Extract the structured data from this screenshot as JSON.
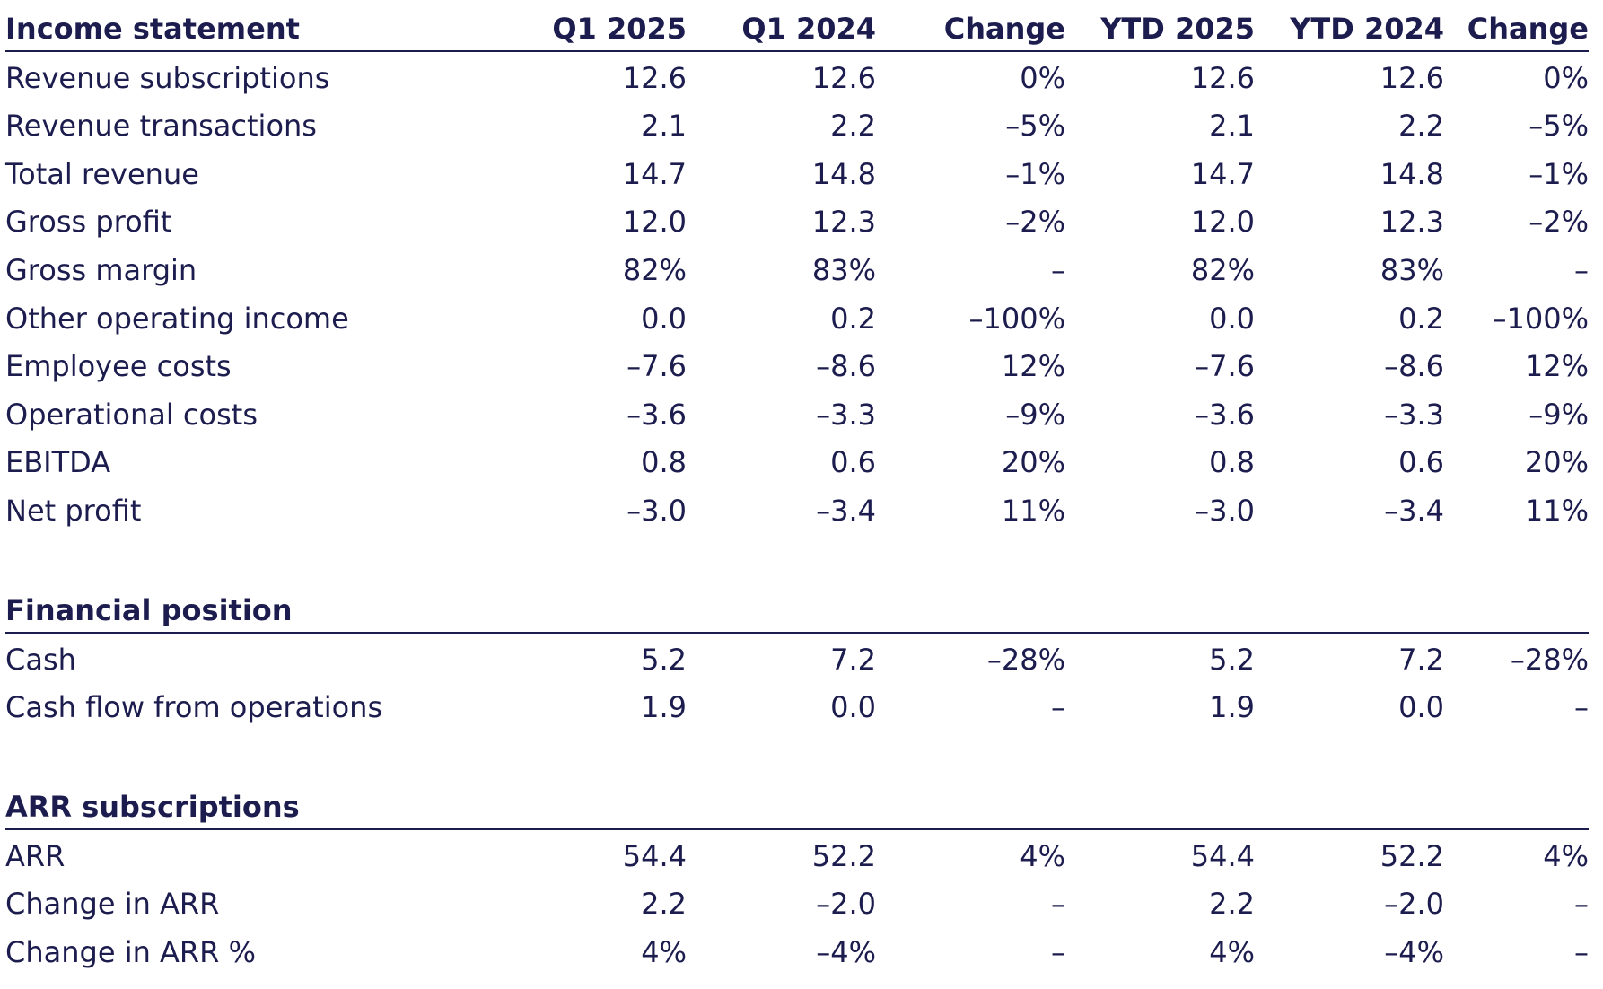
{
  "columns": [
    "Q1 2025",
    "Q1 2024",
    "Change",
    "YTD 2025",
    "YTD 2024",
    "Change"
  ],
  "sections": [
    {
      "title": "Income statement",
      "show_columns": true,
      "rows": [
        {
          "label": "Revenue subscriptions",
          "values": [
            "12.6",
            "12.6",
            "0%",
            "12.6",
            "12.6",
            "0%"
          ]
        },
        {
          "label": "Revenue transactions",
          "values": [
            "2.1",
            "2.2",
            "–5%",
            "2.1",
            "2.2",
            "–5%"
          ]
        },
        {
          "label": "Total revenue",
          "values": [
            "14.7",
            "14.8",
            "–1%",
            "14.7",
            "14.8",
            "–1%"
          ]
        },
        {
          "label": "Gross profit",
          "values": [
            "12.0",
            "12.3",
            "–2%",
            "12.0",
            "12.3",
            "–2%"
          ]
        },
        {
          "label": "Gross margin",
          "values": [
            "82%",
            "83%",
            "–",
            "82%",
            "83%",
            "–"
          ]
        },
        {
          "label": "Other operating income",
          "values": [
            "0.0",
            "0.2",
            "–100%",
            "0.0",
            "0.2",
            "–100%"
          ]
        },
        {
          "label": "Employee costs",
          "values": [
            "–7.6",
            "–8.6",
            "12%",
            "–7.6",
            "–8.6",
            "12%"
          ]
        },
        {
          "label": "Operational costs",
          "values": [
            "–3.6",
            "–3.3",
            "–9%",
            "–3.6",
            "–3.3",
            "–9%"
          ]
        },
        {
          "label": "EBITDA",
          "values": [
            "0.8",
            "0.6",
            "20%",
            "0.8",
            "0.6",
            "20%"
          ]
        },
        {
          "label": "Net profit",
          "values": [
            "–3.0",
            "–3.4",
            "11%",
            "–3.0",
            "–3.4",
            "11%"
          ]
        }
      ]
    },
    {
      "title": "Financial position",
      "show_columns": false,
      "rows": [
        {
          "label": "Cash",
          "values": [
            "5.2",
            "7.2",
            "–28%",
            "5.2",
            "7.2",
            "–28%"
          ]
        },
        {
          "label": "Cash flow from operations",
          "values": [
            "1.9",
            "0.0",
            "–",
            "1.9",
            "0.0",
            "–"
          ]
        }
      ]
    },
    {
      "title": "ARR subscriptions",
      "show_columns": false,
      "rows": [
        {
          "label": "ARR",
          "values": [
            "54.4",
            "52.2",
            "4%",
            "54.4",
            "52.2",
            "4%"
          ]
        },
        {
          "label": "Change in ARR",
          "values": [
            "2.2",
            "–2.0",
            "–",
            "2.2",
            "–2.0",
            "–"
          ]
        },
        {
          "label": "Change in ARR %",
          "values": [
            "4%",
            "–4%",
            "–",
            "4%",
            "–4%",
            "–"
          ]
        }
      ]
    }
  ],
  "colors": {
    "text": "#1c1d4e",
    "rule": "#1c1d4e",
    "background": "#ffffff"
  }
}
